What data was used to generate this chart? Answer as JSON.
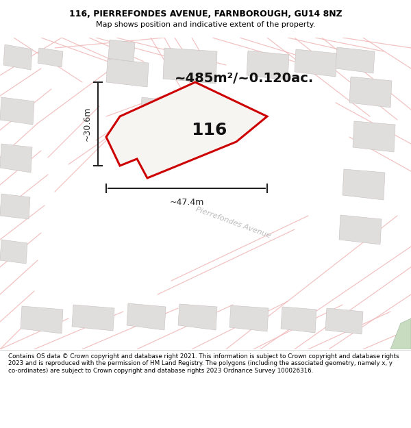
{
  "title_line1": "116, PIERREFONDES AVENUE, FARNBOROUGH, GU14 8NZ",
  "title_line2": "Map shows position and indicative extent of the property.",
  "area_label": "~485m²/~0.120ac.",
  "plot_number": "116",
  "dim_width": "~47.4m",
  "dim_height": "~30.6m",
  "street_label": "Pierrefondes Avenue",
  "footer": "Contains OS data © Crown copyright and database right 2021. This information is subject to Crown copyright and database rights 2023 and is reproduced with the permission of HM Land Registry. The polygons (including the associated geometry, namely x, y co-ordinates) are subject to Crown copyright and database rights 2023 Ordnance Survey 100026316.",
  "map_bg": "#f7f5f2",
  "plot_fill": "#f7f5f2",
  "plot_edge": "#cc0000",
  "road_color": "#f0b8b8",
  "bldg_fill": "#e0dedd",
  "bldg_edge": "#c8c0c0",
  "title_bg": "#ffffff",
  "green_color": "#c8dcc0",
  "dim_color": "#222222",
  "street_color": "#bbbbbb",
  "text_color": "#111111"
}
